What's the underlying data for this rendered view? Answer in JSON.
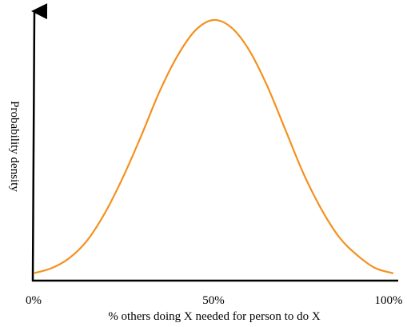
{
  "chart_data": {
    "type": "line",
    "title": "",
    "xlabel": "% others doing X needed for person to do X",
    "ylabel": "Probability density",
    "xlim": [
      0,
      100
    ],
    "ylim": [
      0,
      1.0
    ],
    "grid": false,
    "legend": "none",
    "x_ticks": [
      {
        "value": 0,
        "label": "0%"
      },
      {
        "value": 50,
        "label": "50%"
      },
      {
        "value": 100,
        "label": "100%"
      }
    ],
    "series": [
      {
        "color": "#f5901e",
        "x": [
          0,
          5,
          10,
          15,
          20,
          25,
          30,
          35,
          40,
          45,
          50,
          55,
          60,
          65,
          70,
          75,
          80,
          85,
          90,
          95,
          100
        ],
        "y": [
          0.01,
          0.03,
          0.07,
          0.14,
          0.25,
          0.39,
          0.55,
          0.72,
          0.86,
          0.96,
          1.0,
          0.97,
          0.88,
          0.74,
          0.57,
          0.4,
          0.26,
          0.15,
          0.08,
          0.03,
          0.01
        ]
      }
    ],
    "axis_color": "#000000"
  }
}
